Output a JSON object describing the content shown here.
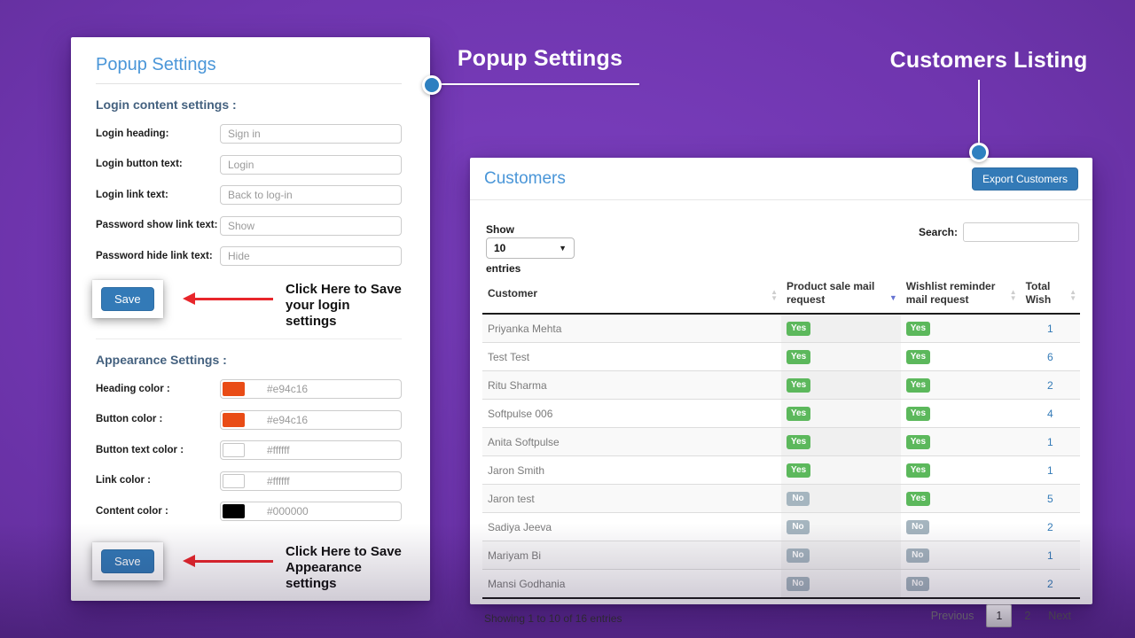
{
  "annotations": {
    "popup_settings_label": "Popup Settings",
    "customers_listing_label": "Customers Listing",
    "save_login_note_line1": "Click Here to Save",
    "save_login_note_line2": "your login settings",
    "save_appearance_note_line1": "Click Here to Save",
    "save_appearance_note_line2": "Appearance settings"
  },
  "popup_panel": {
    "title": "Popup Settings",
    "login_section": {
      "heading": "Login content settings :",
      "fields": [
        {
          "label": "Login heading:",
          "placeholder": "Sign in"
        },
        {
          "label": "Login button text:",
          "placeholder": "Login"
        },
        {
          "label": "Login link text:",
          "placeholder": "Back to log-in"
        },
        {
          "label": "Password show link text:",
          "placeholder": "Show"
        },
        {
          "label": "Password hide link text:",
          "placeholder": "Hide"
        }
      ],
      "save_label": "Save"
    },
    "appearance_section": {
      "heading": "Appearance Settings :",
      "fields": [
        {
          "label": "Heading color :",
          "placeholder": "#e94c16",
          "swatch": "#e94c16"
        },
        {
          "label": "Button color :",
          "placeholder": "#e94c16",
          "swatch": "#e94c16"
        },
        {
          "label": "Button text color :",
          "placeholder": "#ffffff",
          "swatch": "#ffffff"
        },
        {
          "label": "Link color :",
          "placeholder": "#ffffff",
          "swatch": "#ffffff"
        },
        {
          "label": "Content color :",
          "placeholder": "#000000",
          "swatch": "#000000"
        }
      ],
      "save_label": "Save"
    }
  },
  "customers_panel": {
    "title": "Customers",
    "export_button_label": "Export Customers",
    "show_label": "Show",
    "page_length": "10",
    "entries_label": "entries",
    "search_label": "Search:",
    "search_value": "",
    "table": {
      "columns": [
        {
          "label": "Customer",
          "sort": "none"
        },
        {
          "label": "Product sale mail request",
          "sort": "desc"
        },
        {
          "label": "Wishlist reminder mail request",
          "sort": "none"
        },
        {
          "label": "Total Wish",
          "sort": "none"
        }
      ],
      "rows": [
        {
          "customer": "Priyanka Mehta",
          "product_sale": "Yes",
          "wishlist_reminder": "Yes",
          "total_wish": "1"
        },
        {
          "customer": "Test Test",
          "product_sale": "Yes",
          "wishlist_reminder": "Yes",
          "total_wish": "6"
        },
        {
          "customer": "Ritu Sharma",
          "product_sale": "Yes",
          "wishlist_reminder": "Yes",
          "total_wish": "2"
        },
        {
          "customer": "Softpulse 006",
          "product_sale": "Yes",
          "wishlist_reminder": "Yes",
          "total_wish": "4"
        },
        {
          "customer": "Anita Softpulse",
          "product_sale": "Yes",
          "wishlist_reminder": "Yes",
          "total_wish": "1"
        },
        {
          "customer": "Jaron Smith",
          "product_sale": "Yes",
          "wishlist_reminder": "Yes",
          "total_wish": "1"
        },
        {
          "customer": "Jaron test",
          "product_sale": "No",
          "wishlist_reminder": "Yes",
          "total_wish": "5"
        },
        {
          "customer": "Sadiya Jeeva",
          "product_sale": "No",
          "wishlist_reminder": "No",
          "total_wish": "2"
        },
        {
          "customer": "Mariyam Bi",
          "product_sale": "No",
          "wishlist_reminder": "No",
          "total_wish": "1"
        },
        {
          "customer": "Mansi Godhania",
          "product_sale": "No",
          "wishlist_reminder": "No",
          "total_wish": "2"
        }
      ]
    },
    "footer": {
      "info": "Showing 1 to 10 of 16 entries",
      "previous_label": "Previous",
      "current_page": "1",
      "page_2": "2",
      "next_label": "Next"
    }
  },
  "colors": {
    "background_purple": "#6f35ae",
    "heading_blue": "#4a96d8",
    "section_heading_slate": "#44617f",
    "button_blue": "#337ab7",
    "badge_yes_green": "#5cb85c",
    "badge_no_gray": "#a5b5bf",
    "arrow_red": "#e8262b",
    "callout_dot_blue": "#2e80c0",
    "swatch_orange": "#e94c16",
    "swatch_white": "#ffffff",
    "swatch_black": "#000000"
  }
}
